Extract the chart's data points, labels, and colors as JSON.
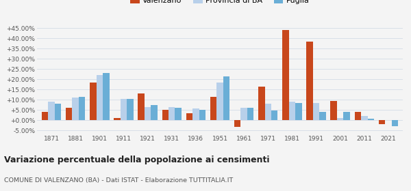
{
  "years": [
    1871,
    1881,
    1901,
    1911,
    1921,
    1931,
    1936,
    1951,
    1961,
    1971,
    1981,
    1991,
    2001,
    2011,
    2021
  ],
  "valenzano": [
    0.04,
    0.06,
    0.185,
    0.01,
    0.13,
    0.05,
    0.035,
    0.115,
    -0.032,
    0.165,
    0.44,
    0.385,
    0.095,
    0.04,
    -0.02
  ],
  "provincia_ba": [
    0.09,
    0.11,
    0.22,
    0.105,
    0.065,
    0.065,
    0.058,
    0.185,
    0.06,
    0.08,
    0.09,
    0.085,
    0.01,
    0.02,
    0.0
  ],
  "puglia": [
    0.08,
    0.115,
    0.23,
    0.105,
    0.075,
    0.06,
    0.053,
    0.215,
    0.06,
    0.048,
    0.083,
    0.04,
    0.04,
    0.008,
    -0.03
  ],
  "color_valenzano": "#c8471c",
  "color_provincia": "#b8d0ea",
  "color_puglia": "#6aaed6",
  "title": "Variazione percentuale della popolazione ai censimenti",
  "subtitle": "COMUNE DI VALENZANO (BA) - Dati ISTAT - Elaborazione TUTTITALIA.IT",
  "legend_labels": [
    "Valenzano",
    "Provincia di BA",
    "Puglia"
  ],
  "ylim": [
    -0.065,
    0.475
  ],
  "yticks": [
    -0.05,
    0.0,
    0.05,
    0.1,
    0.15,
    0.2,
    0.25,
    0.3,
    0.35,
    0.4,
    0.45
  ],
  "bg_color": "#f4f4f4",
  "grid_color": "#d8dfe8",
  "bar_width": 0.27
}
